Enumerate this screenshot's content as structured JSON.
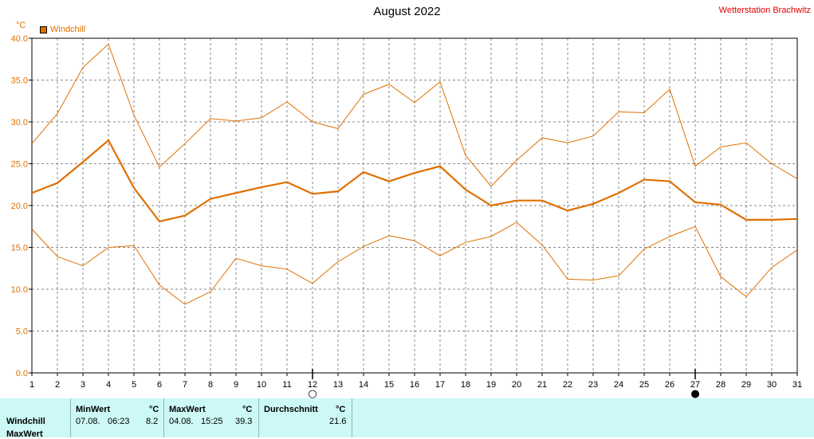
{
  "title": "August 2022",
  "station": "Wetterstation Brachwitz",
  "unit": "°C",
  "legend": {
    "label": "Windchill",
    "color": "#e07000"
  },
  "chart_data": {
    "type": "line",
    "x": [
      1,
      2,
      3,
      4,
      5,
      6,
      7,
      8,
      9,
      10,
      11,
      12,
      13,
      14,
      15,
      16,
      17,
      18,
      19,
      20,
      21,
      22,
      23,
      24,
      25,
      26,
      27,
      28,
      29,
      30,
      31
    ],
    "ylim": [
      0,
      40
    ],
    "yticks": [
      "0.0",
      "5.0",
      "10.0",
      "15.0",
      "20.0",
      "25.0",
      "30.0",
      "35.0",
      "40.0"
    ],
    "grid": true,
    "series": [
      {
        "name": "Windchill",
        "role": "avg",
        "values": [
          21.5,
          22.7,
          25.2,
          27.8,
          22.1,
          18.1,
          18.8,
          20.8,
          21.5,
          22.2,
          22.8,
          21.4,
          21.7,
          24.0,
          22.9,
          23.9,
          24.7,
          21.9,
          20.0,
          20.6,
          20.6,
          19.4,
          20.2,
          21.5,
          23.1,
          22.9,
          20.4,
          20.1,
          18.3,
          18.3,
          18.4
        ]
      },
      {
        "role": "max",
        "values": [
          27.4,
          31.0,
          36.5,
          39.3,
          30.8,
          24.6,
          27.4,
          30.4,
          30.1,
          30.5,
          32.4,
          30.0,
          29.2,
          33.3,
          34.5,
          32.3,
          34.8,
          26.0,
          22.3,
          25.4,
          28.1,
          27.5,
          28.3,
          31.2,
          31.1,
          33.9,
          24.7,
          27.0,
          27.5,
          25.0,
          23.2
        ]
      },
      {
        "role": "min",
        "values": [
          17.2,
          13.9,
          12.8,
          15.0,
          15.2,
          10.5,
          8.2,
          9.7,
          13.7,
          12.8,
          12.4,
          10.7,
          13.3,
          15.1,
          16.4,
          15.8,
          14.0,
          15.6,
          16.3,
          18.0,
          15.3,
          11.2,
          11.1,
          11.6,
          14.8,
          16.3,
          17.5,
          11.5,
          9.1,
          12.6,
          14.7
        ]
      }
    ],
    "markers": [
      {
        "day": 12,
        "symbol": "full-moon",
        "glyph": "○"
      },
      {
        "day": 27,
        "symbol": "new-moon",
        "glyph": "●"
      }
    ]
  },
  "stats": {
    "row_label": "Windchill",
    "row_label_2": "MaxWert",
    "min": {
      "header": "MinWert",
      "unit": "°C",
      "date": "07.08.",
      "time": "06:23",
      "value": "8.2"
    },
    "max": {
      "header": "MaxWert",
      "unit": "°C",
      "date": "04.08.",
      "time": "15:25",
      "value": "39.3"
    },
    "avg": {
      "header": "Durchschnitt",
      "unit": "°C",
      "value": "21.6"
    }
  }
}
